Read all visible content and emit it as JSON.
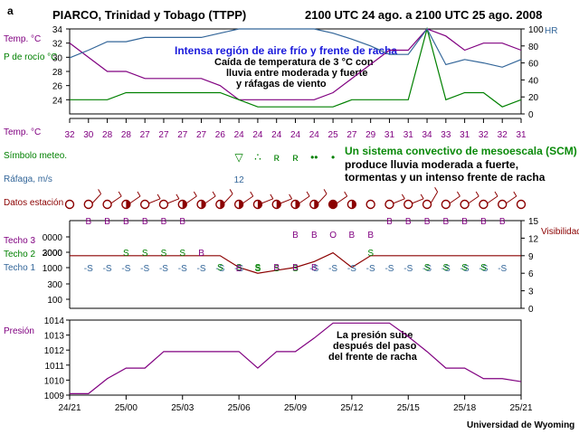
{
  "header": {
    "panel_letter": "a",
    "station": "PIARCO, Trinidad y Tobago (TTPP)",
    "period": "2100 UTC 24 ago. a 2100 UTC 25 ago. 2008",
    "credit": "Universidad de Wyoming"
  },
  "colors": {
    "temp": "#800080",
    "dew": "#008000",
    "rh": "#336699",
    "pressure": "#800080",
    "station": "#8b0000",
    "ann_blue": "#1a1adb",
    "ann_green": "#0a8a0a"
  },
  "x_axis": {
    "tick_labels": [
      "24/21",
      "25/00",
      "25/03",
      "25/06",
      "25/09",
      "25/12",
      "25/15",
      "25/18",
      "25/21"
    ]
  },
  "labels": {
    "temp": "Temp. °C",
    "dew": "P de rocío °C",
    "rh": "HR",
    "temp_row": "Temp. °C",
    "weather": "Símbolo meteo.",
    "gust": "Ráfaga, m/s",
    "station": "Datos estación",
    "ceiling3": "Techo 3",
    "ceiling2": "Techo 2",
    "ceiling1": "Techo 1",
    "visibility": "Visibilidad",
    "pressure": "Presión"
  },
  "annotations": {
    "front_title": "Intensa región de aire frío y frente de racha",
    "front_text": [
      "Caída de temperatura de 3 °C con",
      "lluvia entre moderada y fuerte",
      "y ráfagas de viento"
    ],
    "scm_title": "Un sistema convectivo de mesoescala (SCM)",
    "scm_text": [
      "produce lluvia moderada a fuerte,",
      "tormentas y un intenso frente de racha"
    ],
    "pressure_text": [
      "La presión sube",
      "después del paso",
      "del frente de racha"
    ]
  },
  "gust_values": [
    {
      "hour": 9,
      "value": "12"
    }
  ],
  "chart_data": [
    {
      "type": "line",
      "x_hours": [
        0,
        1,
        2,
        3,
        4,
        5,
        6,
        7,
        8,
        9,
        10,
        11,
        12,
        13,
        14,
        15,
        16,
        17,
        18,
        19,
        20,
        21,
        22,
        23,
        24
      ],
      "series": [
        {
          "name": "Temp. °C",
          "axis": "left",
          "values": [
            32,
            30,
            28,
            28,
            27,
            27,
            27,
            27,
            26,
            24,
            24,
            24,
            24,
            24,
            25,
            27,
            29,
            31,
            31,
            34,
            33,
            31,
            32,
            32,
            31
          ]
        },
        {
          "name": "P de rocío °C",
          "axis": "left",
          "values": [
            24,
            24,
            24,
            25,
            25,
            25,
            25,
            25,
            25,
            24,
            23,
            23,
            23,
            23,
            23,
            24,
            24,
            24,
            24,
            34,
            24,
            25,
            25,
            23,
            24
          ]
        },
        {
          "name": "HR",
          "axis": "right",
          "values": [
            66,
            75,
            85,
            85,
            90,
            90,
            90,
            90,
            95,
            100,
            100,
            100,
            100,
            100,
            95,
            88,
            80,
            70,
            70,
            100,
            58,
            64,
            60,
            55,
            64
          ]
        }
      ],
      "ylim_left": [
        22,
        34
      ],
      "yticks_left": [
        24,
        26,
        28,
        30,
        32,
        34
      ],
      "ylim_right": [
        0,
        100
      ],
      "yticks_right": [
        0,
        20,
        40,
        60,
        80,
        100
      ],
      "grid": false
    },
    {
      "type": "table",
      "row": "Temp. °C",
      "values": [
        "32",
        "30",
        "28",
        "28",
        "27",
        "27",
        "27",
        "27",
        "26",
        "24",
        "24",
        "24",
        "24",
        "24",
        "25",
        "27",
        "29",
        "31",
        "31",
        "34",
        "33",
        "31",
        "32",
        "32",
        "31"
      ]
    },
    {
      "type": "line",
      "title": "Techo / Visibilidad",
      "visibility": [
        9,
        9,
        9,
        9,
        9,
        9,
        9,
        9,
        9,
        7,
        6,
        6.5,
        7,
        8,
        9.5,
        7,
        9,
        9,
        9,
        9,
        9,
        9,
        9,
        9,
        9
      ],
      "ceiling_layers": {
        "labels": [
          "100",
          "300",
          "1000",
          "2000",
          "3000",
          "0000"
        ],
        "right_ticks": [
          0,
          3,
          6,
          9,
          12,
          15
        ],
        "ylim_right": [
          0,
          15
        ]
      },
      "cloud_codes": [
        {
          "hour": 1,
          "code": "-S",
          "layer": "1000"
        },
        {
          "hour": 2,
          "code": "-S",
          "layer": "1000"
        },
        {
          "hour": 3,
          "code": "-S",
          "layer": "1000"
        },
        {
          "hour": 4,
          "code": "-S",
          "layer": "1000"
        },
        {
          "hour": 5,
          "code": "-S",
          "layer": "1000"
        },
        {
          "hour": 6,
          "code": "-S",
          "layer": "1000"
        },
        {
          "hour": 7,
          "code": "-S",
          "layer": "1000"
        },
        {
          "hour": 8,
          "code": "-S",
          "layer": "1000"
        },
        {
          "hour": 9,
          "code": "-S",
          "layer": "1000"
        },
        {
          "hour": 10,
          "code": "S",
          "layer": "1000"
        },
        {
          "hour": 11,
          "code": "S",
          "layer": "1000"
        },
        {
          "hour": 12,
          "code": "S",
          "layer": "1000"
        },
        {
          "hour": 3,
          "code": "S",
          "layer": "3000"
        },
        {
          "hour": 4,
          "code": "S",
          "layer": "3000"
        },
        {
          "hour": 5,
          "code": "S",
          "layer": "3000"
        },
        {
          "hour": 6,
          "code": "S",
          "layer": "3000"
        },
        {
          "hour": 7,
          "code": "B",
          "layer": "3000"
        },
        {
          "hour": 8,
          "code": "S",
          "layer": "2000"
        },
        {
          "hour": 9,
          "code": "S",
          "layer": "2000"
        },
        {
          "hour": 10,
          "code": "S",
          "layer": "2000"
        },
        {
          "hour": 11,
          "code": "B",
          "layer": "2000"
        },
        {
          "hour": 12,
          "code": "B",
          "layer": "2000"
        },
        {
          "hour": 13,
          "code": "B",
          "layer": "2000"
        },
        {
          "hour": 9,
          "code": "B",
          "layer": "1000"
        },
        {
          "hour": 12,
          "code": "B",
          "layer": "0000"
        },
        {
          "hour": 13,
          "code": "B",
          "layer": "0000"
        },
        {
          "hour": 14,
          "code": "O",
          "layer": "0000"
        },
        {
          "hour": 15,
          "code": "B",
          "layer": "0000"
        },
        {
          "hour": 16,
          "code": "B",
          "layer": "0000"
        },
        {
          "hour": 16,
          "code": "S",
          "layer": "3000"
        },
        {
          "hour": 13,
          "code": "-S",
          "layer": "1000"
        },
        {
          "hour": 14,
          "code": "-S",
          "layer": "1000"
        },
        {
          "hour": 15,
          "code": "-S",
          "layer": "1000"
        },
        {
          "hour": 16,
          "code": "-S",
          "layer": "1000"
        },
        {
          "hour": 17,
          "code": "-S",
          "layer": "1000"
        },
        {
          "hour": 18,
          "code": "-S",
          "layer": "1000"
        },
        {
          "hour": 19,
          "code": "-S",
          "layer": "1000"
        },
        {
          "hour": 20,
          "code": "-S",
          "layer": "1000"
        },
        {
          "hour": 21,
          "code": "-S",
          "layer": "1000"
        },
        {
          "hour": 22,
          "code": "-S",
          "layer": "1000"
        },
        {
          "hour": 23,
          "code": "-S",
          "layer": "1000"
        },
        {
          "hour": 19,
          "code": "S",
          "layer": "2000"
        },
        {
          "hour": 20,
          "code": "S",
          "layer": "2000"
        },
        {
          "hour": 21,
          "code": "S",
          "layer": "2000"
        },
        {
          "hour": 22,
          "code": "S",
          "layer": "2000"
        },
        {
          "hour": 17,
          "code": "B",
          "layer": "cb"
        },
        {
          "hour": 18,
          "code": "B",
          "layer": "cb"
        },
        {
          "hour": 19,
          "code": "B",
          "layer": "cb"
        },
        {
          "hour": 20,
          "code": "B",
          "layer": "cb"
        },
        {
          "hour": 21,
          "code": "B",
          "layer": "cb"
        },
        {
          "hour": 22,
          "code": "B",
          "layer": "cb"
        },
        {
          "hour": 23,
          "code": "B",
          "layer": "cb"
        },
        {
          "hour": 1,
          "code": "B",
          "layer": "cb"
        },
        {
          "hour": 2,
          "code": "B",
          "layer": "cb"
        },
        {
          "hour": 3,
          "code": "B",
          "layer": "cb"
        },
        {
          "hour": 4,
          "code": "B",
          "layer": "cb"
        },
        {
          "hour": 5,
          "code": "B",
          "layer": "cb"
        },
        {
          "hour": 6,
          "code": "B",
          "layer": "cb"
        }
      ]
    },
    {
      "type": "line",
      "series": [
        {
          "name": "Presión",
          "values": [
            1009.1,
            1009.1,
            1010.1,
            1010.8,
            1010.8,
            1011.9,
            1011.9,
            1011.9,
            1011.9,
            1011.9,
            1010.8,
            1011.9,
            1011.9,
            1012.8,
            1013.8,
            1013.8,
            1013.8,
            1013.8,
            1012.9,
            1011.9,
            1010.8,
            1010.8,
            1010.1,
            1010.1,
            1009.9
          ]
        }
      ],
      "ylim": [
        1009,
        1014
      ],
      "yticks": [
        1009,
        1010,
        1011,
        1012,
        1013,
        1014
      ],
      "grid": false
    }
  ]
}
